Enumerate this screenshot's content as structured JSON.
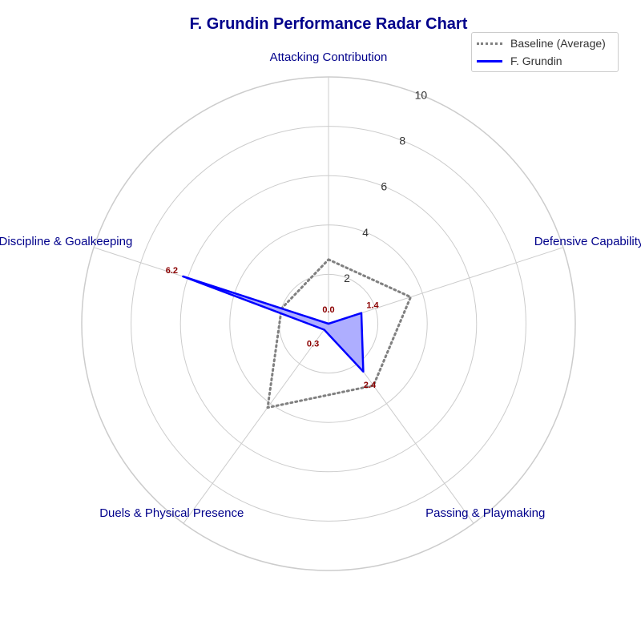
{
  "chart_data": {
    "type": "radar",
    "title": "F. Grundin Performance Radar Chart",
    "axes": [
      "Attacking Contribution",
      "Defensive Capability",
      "Passing & Playmaking",
      "Duels & Physical Presence",
      "Discipline & Goalkeeping"
    ],
    "rlim": [
      0,
      10
    ],
    "r_ticks": [
      2,
      4,
      6,
      8,
      10
    ],
    "grid": true,
    "legend_position": "top-right",
    "series": [
      {
        "name": "Baseline (Average)",
        "values": [
          2.6,
          3.5,
          3.1,
          4.2,
          2.0
        ],
        "style": "dotted",
        "color": "#808080",
        "fill": false
      },
      {
        "name": "F. Grundin",
        "values": [
          0.0,
          1.4,
          2.4,
          0.3,
          6.2
        ],
        "style": "solid",
        "color": "#0000ff",
        "fill": true,
        "fill_color": "#aaaaff",
        "show_value_labels": true
      }
    ],
    "value_labels": [
      "0.0",
      "1.4",
      "2.4",
      "0.3",
      "6.2"
    ],
    "colors": {
      "title": "#00008b",
      "axis_labels": "#00008b",
      "value_labels": "#8b0000",
      "grid": "#cccccc"
    }
  }
}
